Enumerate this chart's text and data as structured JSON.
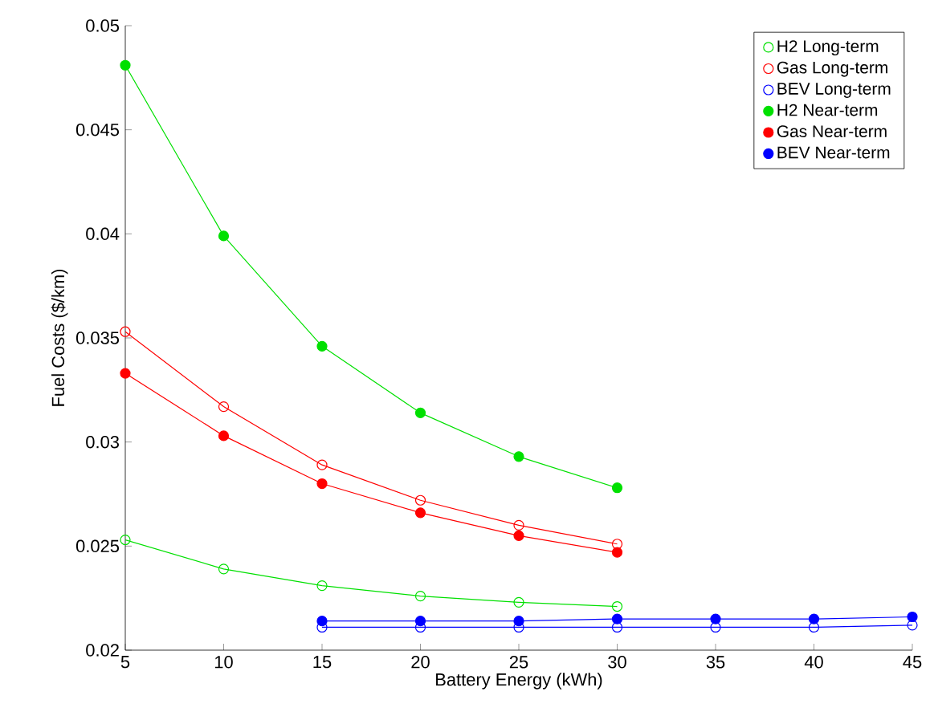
{
  "chart_data": {
    "type": "line",
    "xlabel": "Battery Energy (kWh)",
    "ylabel": "Fuel Costs ($/km)",
    "xlim": [
      5,
      45
    ],
    "xticks": [
      5,
      10,
      15,
      20,
      25,
      30,
      35,
      40,
      45
    ],
    "ylim": [
      0.02,
      0.05
    ],
    "yticks": [
      0.02,
      0.025,
      0.03,
      0.035,
      0.04,
      0.045,
      0.05
    ],
    "legend": "top right",
    "marker": "circle",
    "line_style": "solid",
    "grid": false,
    "series": [
      {
        "name": "H2 Long-term",
        "color": "#00e000",
        "x": [
          5,
          10,
          15,
          20,
          25,
          30
        ],
        "values": [
          0.0253,
          0.0239,
          0.0231,
          0.0226,
          0.0223,
          0.0221
        ]
      },
      {
        "name": "Gas Long-term",
        "color": "#ff0000",
        "x": [
          5,
          10,
          15,
          20,
          25,
          30
        ],
        "values": [
          0.0353,
          0.0317,
          0.0289,
          0.0272,
          0.026,
          0.0251
        ]
      },
      {
        "name": "BEV Long-term",
        "color": "#0000ff",
        "x": [
          15,
          20,
          25,
          30,
          35,
          40,
          45
        ],
        "values": [
          0.0211,
          0.0211,
          0.0211,
          0.0211,
          0.0211,
          0.0211,
          0.0212
        ]
      },
      {
        "name": "H2 Near-term",
        "color": "#00e000",
        "x": [
          5,
          10,
          15,
          20,
          25,
          30
        ],
        "values": [
          0.0481,
          0.0399,
          0.0346,
          0.0314,
          0.0293,
          0.0278
        ]
      },
      {
        "name": "Gas Near-term",
        "color": "#ff0000",
        "x": [
          5,
          10,
          15,
          20,
          25,
          30
        ],
        "values": [
          0.0333,
          0.0303,
          0.028,
          0.0266,
          0.0255,
          0.0247
        ]
      },
      {
        "name": "BEV Near-term",
        "color": "#0000ff",
        "x": [
          15,
          20,
          25,
          30,
          35,
          40,
          45
        ],
        "values": [
          0.0214,
          0.0214,
          0.0214,
          0.0215,
          0.0215,
          0.0215,
          0.0216
        ]
      }
    ]
  }
}
